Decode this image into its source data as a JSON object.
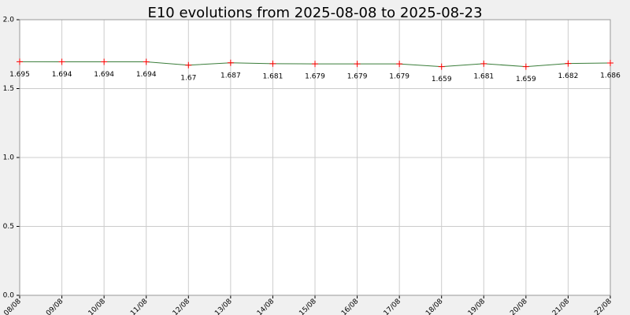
{
  "chart_data": {
    "type": "line",
    "title": "E10 evolutions from 2025-08-08 to 2025-08-23",
    "categories": [
      "08/08",
      "09/08",
      "10/08",
      "11/08",
      "12/08",
      "13/08",
      "14/08",
      "15/08",
      "16/08",
      "17/08",
      "18/08",
      "19/08",
      "20/08",
      "21/08",
      "22/08"
    ],
    "values": [
      1.695,
      1.694,
      1.694,
      1.694,
      1.67,
      1.687,
      1.681,
      1.679,
      1.679,
      1.679,
      1.659,
      1.681,
      1.659,
      1.682,
      1.686
    ],
    "color": "#3a7d3a",
    "marker_color": "#ff0000",
    "ylim": [
      0,
      2
    ],
    "yticks": [
      {
        "value": 0,
        "label": "0.0"
      },
      {
        "value": 0.5,
        "label": "0.5"
      },
      {
        "value": 1,
        "label": "1.0"
      },
      {
        "value": 1.5,
        "label": "1.5"
      },
      {
        "value": 2,
        "label": "2.0"
      }
    ],
    "grid": true
  }
}
